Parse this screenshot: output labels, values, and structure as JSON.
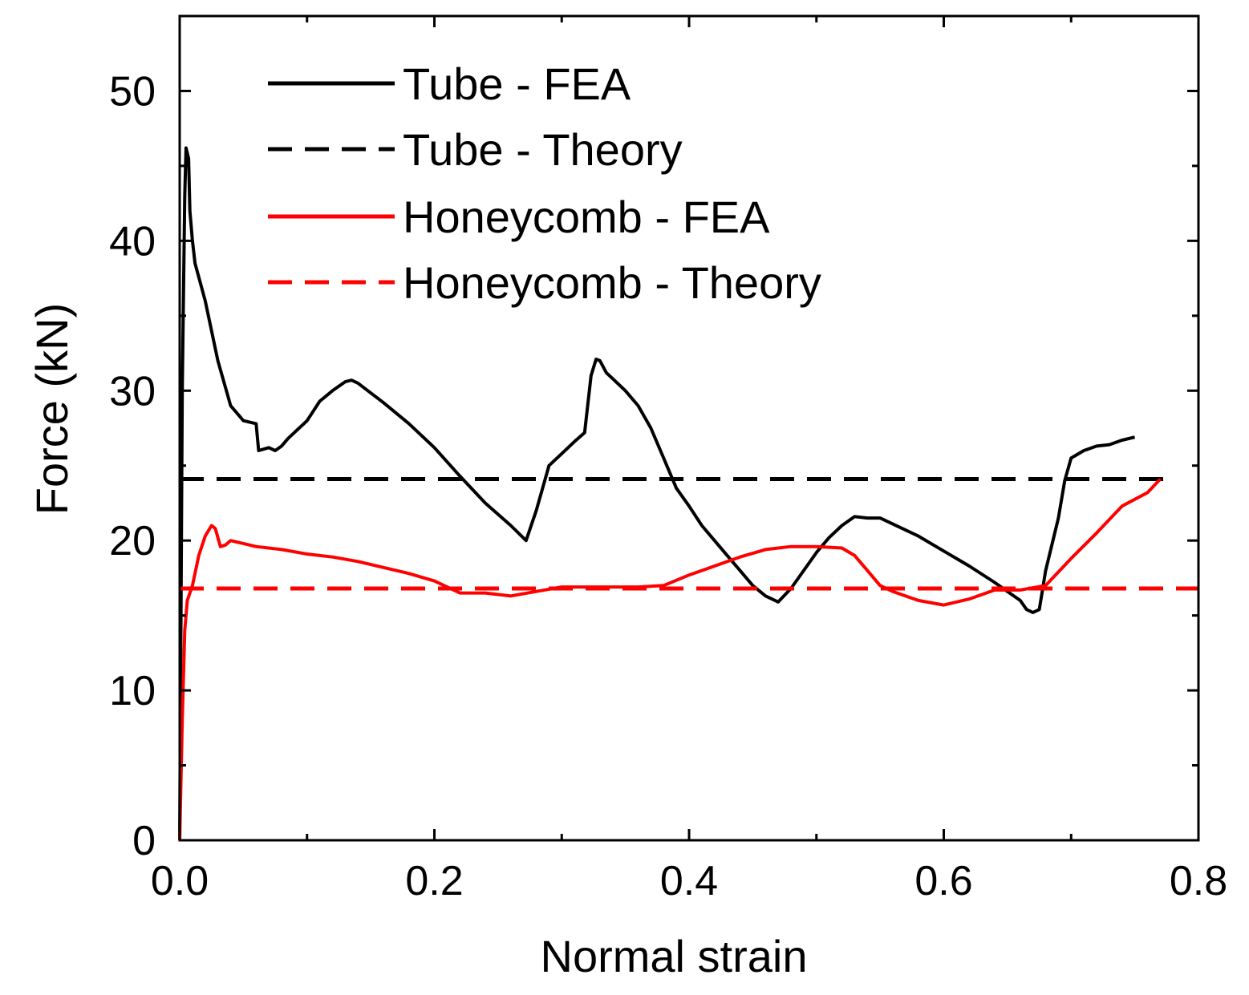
{
  "chart_data": {
    "type": "line",
    "title": "",
    "xlabel": "Normal strain",
    "ylabel": "Force (kN)",
    "xlim": [
      0,
      0.8
    ],
    "ylim": [
      0,
      55
    ],
    "x_ticks": [
      0.0,
      0.2,
      0.4,
      0.6,
      0.8
    ],
    "x_tick_labels": [
      "0.0",
      "0.2",
      "0.4",
      "0.6",
      "0.8"
    ],
    "y_ticks": [
      0,
      10,
      20,
      30,
      40,
      50
    ],
    "y_tick_labels": [
      "0",
      "10",
      "20",
      "30",
      "40",
      "50"
    ],
    "grid": false,
    "legend_position": "top-left",
    "series": [
      {
        "name": "Tube - FEA",
        "color": "#000000",
        "dash": "solid",
        "points": [
          [
            0.0,
            0
          ],
          [
            0.002,
            30
          ],
          [
            0.004,
            43
          ],
          [
            0.005,
            46.2
          ],
          [
            0.007,
            45.5
          ],
          [
            0.008,
            42
          ],
          [
            0.01,
            40
          ],
          [
            0.012,
            38.5
          ],
          [
            0.02,
            36
          ],
          [
            0.03,
            32
          ],
          [
            0.04,
            29
          ],
          [
            0.05,
            28
          ],
          [
            0.06,
            27.8
          ],
          [
            0.062,
            26
          ],
          [
            0.07,
            26.2
          ],
          [
            0.075,
            26
          ],
          [
            0.08,
            26.3
          ],
          [
            0.085,
            26.8
          ],
          [
            0.09,
            27.2
          ],
          [
            0.1,
            28
          ],
          [
            0.11,
            29.3
          ],
          [
            0.12,
            30
          ],
          [
            0.13,
            30.6
          ],
          [
            0.135,
            30.7
          ],
          [
            0.14,
            30.5
          ],
          [
            0.16,
            29.2
          ],
          [
            0.18,
            27.8
          ],
          [
            0.2,
            26.2
          ],
          [
            0.22,
            24.3
          ],
          [
            0.24,
            22.5
          ],
          [
            0.26,
            21
          ],
          [
            0.272,
            20
          ],
          [
            0.28,
            22
          ],
          [
            0.29,
            25
          ],
          [
            0.3,
            25.8
          ],
          [
            0.31,
            26.6
          ],
          [
            0.318,
            27.2
          ],
          [
            0.323,
            31
          ],
          [
            0.327,
            32.1
          ],
          [
            0.33,
            32
          ],
          [
            0.335,
            31.2
          ],
          [
            0.35,
            30
          ],
          [
            0.36,
            29
          ],
          [
            0.37,
            27.5
          ],
          [
            0.38,
            25.5
          ],
          [
            0.39,
            23.5
          ],
          [
            0.4,
            22.3
          ],
          [
            0.41,
            21
          ],
          [
            0.42,
            20
          ],
          [
            0.43,
            19
          ],
          [
            0.44,
            18
          ],
          [
            0.45,
            17
          ],
          [
            0.46,
            16.3
          ],
          [
            0.47,
            15.9
          ],
          [
            0.48,
            16.8
          ],
          [
            0.49,
            18
          ],
          [
            0.5,
            19.2
          ],
          [
            0.51,
            20.2
          ],
          [
            0.52,
            21
          ],
          [
            0.53,
            21.6
          ],
          [
            0.54,
            21.5
          ],
          [
            0.55,
            21.5
          ],
          [
            0.56,
            21.1
          ],
          [
            0.58,
            20.3
          ],
          [
            0.6,
            19.3
          ],
          [
            0.62,
            18.3
          ],
          [
            0.64,
            17.2
          ],
          [
            0.65,
            16.6
          ],
          [
            0.66,
            16
          ],
          [
            0.665,
            15.4
          ],
          [
            0.67,
            15.2
          ],
          [
            0.675,
            15.4
          ],
          [
            0.68,
            18
          ],
          [
            0.69,
            21.5
          ],
          [
            0.695,
            24
          ],
          [
            0.7,
            25.5
          ],
          [
            0.71,
            26
          ],
          [
            0.72,
            26.3
          ],
          [
            0.73,
            26.4
          ],
          [
            0.74,
            26.7
          ],
          [
            0.75,
            26.9
          ]
        ]
      },
      {
        "name": "Tube - Theory",
        "color": "#000000",
        "dash": "dashed",
        "points": [
          [
            0.0,
            24.1
          ],
          [
            0.775,
            24.1
          ]
        ]
      },
      {
        "name": "Honeycomb - FEA",
        "color": "#ff0000",
        "dash": "solid",
        "points": [
          [
            0.0,
            0
          ],
          [
            0.002,
            8
          ],
          [
            0.004,
            14
          ],
          [
            0.006,
            16
          ],
          [
            0.01,
            17
          ],
          [
            0.015,
            19
          ],
          [
            0.02,
            20.3
          ],
          [
            0.025,
            21
          ],
          [
            0.028,
            20.8
          ],
          [
            0.032,
            19.6
          ],
          [
            0.036,
            19.7
          ],
          [
            0.04,
            20
          ],
          [
            0.05,
            19.8
          ],
          [
            0.06,
            19.6
          ],
          [
            0.08,
            19.4
          ],
          [
            0.1,
            19.1
          ],
          [
            0.12,
            18.9
          ],
          [
            0.14,
            18.6
          ],
          [
            0.16,
            18.2
          ],
          [
            0.18,
            17.8
          ],
          [
            0.2,
            17.3
          ],
          [
            0.21,
            16.9
          ],
          [
            0.22,
            16.5
          ],
          [
            0.24,
            16.5
          ],
          [
            0.26,
            16.3
          ],
          [
            0.28,
            16.6
          ],
          [
            0.3,
            16.9
          ],
          [
            0.32,
            16.9
          ],
          [
            0.34,
            16.9
          ],
          [
            0.36,
            16.9
          ],
          [
            0.38,
            17
          ],
          [
            0.4,
            17.7
          ],
          [
            0.42,
            18.3
          ],
          [
            0.44,
            18.9
          ],
          [
            0.46,
            19.4
          ],
          [
            0.48,
            19.6
          ],
          [
            0.5,
            19.6
          ],
          [
            0.52,
            19.5
          ],
          [
            0.53,
            19
          ],
          [
            0.54,
            18
          ],
          [
            0.55,
            17
          ],
          [
            0.56,
            16.6
          ],
          [
            0.58,
            16
          ],
          [
            0.6,
            15.7
          ],
          [
            0.62,
            16.1
          ],
          [
            0.64,
            16.7
          ],
          [
            0.66,
            16.7
          ],
          [
            0.68,
            17
          ],
          [
            0.7,
            18.8
          ],
          [
            0.72,
            20.5
          ],
          [
            0.74,
            22.3
          ],
          [
            0.76,
            23.2
          ],
          [
            0.77,
            24.1
          ]
        ]
      },
      {
        "name": "Honeycomb - Theory",
        "color": "#ff0000",
        "dash": "dashed",
        "points": [
          [
            0.0,
            16.8
          ],
          [
            0.8,
            16.8
          ]
        ]
      }
    ]
  }
}
